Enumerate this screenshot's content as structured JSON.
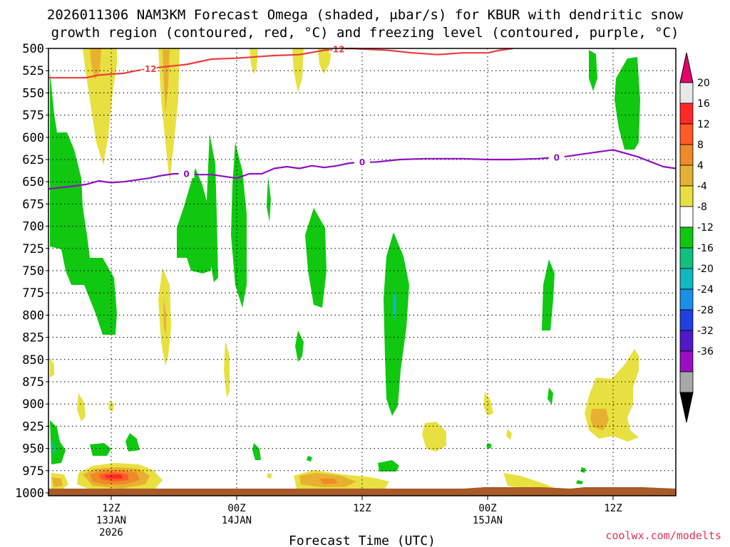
{
  "chart_data": {
    "type": "heatmap",
    "title_line1": "2026011306 NAM3KM Forecast Omega (shaded, μbar/s) for KBUR with dendritic snow",
    "title_line2": "growth region (contoured, red, °C) and freezing level (contoured, purple, °C)",
    "xlabel": "Forecast Time (UTC)",
    "credit": "coolwx.com/modelts",
    "x_hours_range": [
      7,
      57
    ],
    "x_ticks": [
      {
        "hour": 12,
        "label": "12Z",
        "sub1": "13JAN",
        "sub2": "2026"
      },
      {
        "hour": 22,
        "label": "00Z",
        "sub1": "14JAN",
        "sub2": ""
      },
      {
        "hour": 32,
        "label": "12Z",
        "sub1": "",
        "sub2": ""
      },
      {
        "hour": 42,
        "label": "00Z",
        "sub1": "15JAN",
        "sub2": ""
      },
      {
        "hour": 52,
        "label": "12Z",
        "sub1": "",
        "sub2": ""
      }
    ],
    "y_levels": [
      500,
      525,
      550,
      575,
      600,
      625,
      650,
      675,
      700,
      725,
      750,
      775,
      800,
      825,
      850,
      875,
      900,
      925,
      950,
      975,
      1000
    ],
    "colorbar": {
      "labels": [
        "20",
        "16",
        "12",
        "8",
        "4",
        "-4",
        "-8",
        "-12",
        "-16",
        "-20",
        "-24",
        "-28",
        "-32",
        "-36"
      ],
      "colors": [
        "#e8e8e8",
        "#ff2828",
        "#ff5a28",
        "#ee8a28",
        "#e8b030",
        "#e8e040",
        "#ffffff",
        "#10c810",
        "#10c080",
        "#10b8c0",
        "#1890e8",
        "#2040e0",
        "#5018c8",
        "#9810c0",
        "#a8a8a8"
      ],
      "top_arrow_color": "#e8006e",
      "bottom_arrow_color": "#000000"
    },
    "dgz_contour": {
      "label": "-12",
      "color": "#ee3c3c",
      "points": [
        [
          7,
          533
        ],
        [
          10,
          533
        ],
        [
          11,
          530
        ],
        [
          13,
          528
        ],
        [
          14,
          525
        ],
        [
          16,
          521
        ],
        [
          18,
          518
        ],
        [
          20,
          512
        ],
        [
          22,
          511
        ],
        [
          25,
          508
        ],
        [
          27,
          507
        ],
        [
          29,
          502
        ],
        [
          31,
          500
        ],
        [
          34,
          502
        ],
        [
          36,
          505
        ],
        [
          38,
          507
        ],
        [
          40,
          505
        ],
        [
          42,
          505
        ],
        [
          43,
          502
        ],
        [
          44,
          500
        ]
      ]
    },
    "freezing_contour": {
      "label": "0",
      "color": "#9010c0",
      "points": [
        [
          7,
          658
        ],
        [
          9,
          655
        ],
        [
          10,
          653
        ],
        [
          11,
          649
        ],
        [
          12,
          651
        ],
        [
          13,
          650
        ],
        [
          15,
          646
        ],
        [
          16,
          643
        ],
        [
          17,
          641
        ],
        [
          18,
          641
        ],
        [
          19,
          642
        ],
        [
          20,
          642
        ],
        [
          21,
          644
        ],
        [
          22,
          646
        ],
        [
          23,
          641
        ],
        [
          24,
          641
        ],
        [
          25,
          635
        ],
        [
          26,
          633
        ],
        [
          27,
          635
        ],
        [
          28,
          632
        ],
        [
          29,
          634
        ],
        [
          30,
          632
        ],
        [
          31,
          629
        ],
        [
          32,
          628
        ],
        [
          33,
          628
        ],
        [
          35,
          625
        ],
        [
          37,
          624
        ],
        [
          40,
          624
        ],
        [
          42,
          625
        ],
        [
          44,
          625
        ],
        [
          46,
          624
        ],
        [
          48,
          622
        ],
        [
          50,
          618
        ],
        [
          52,
          614
        ],
        [
          54,
          622
        ],
        [
          56,
          633
        ],
        [
          57,
          635
        ]
      ]
    }
  }
}
